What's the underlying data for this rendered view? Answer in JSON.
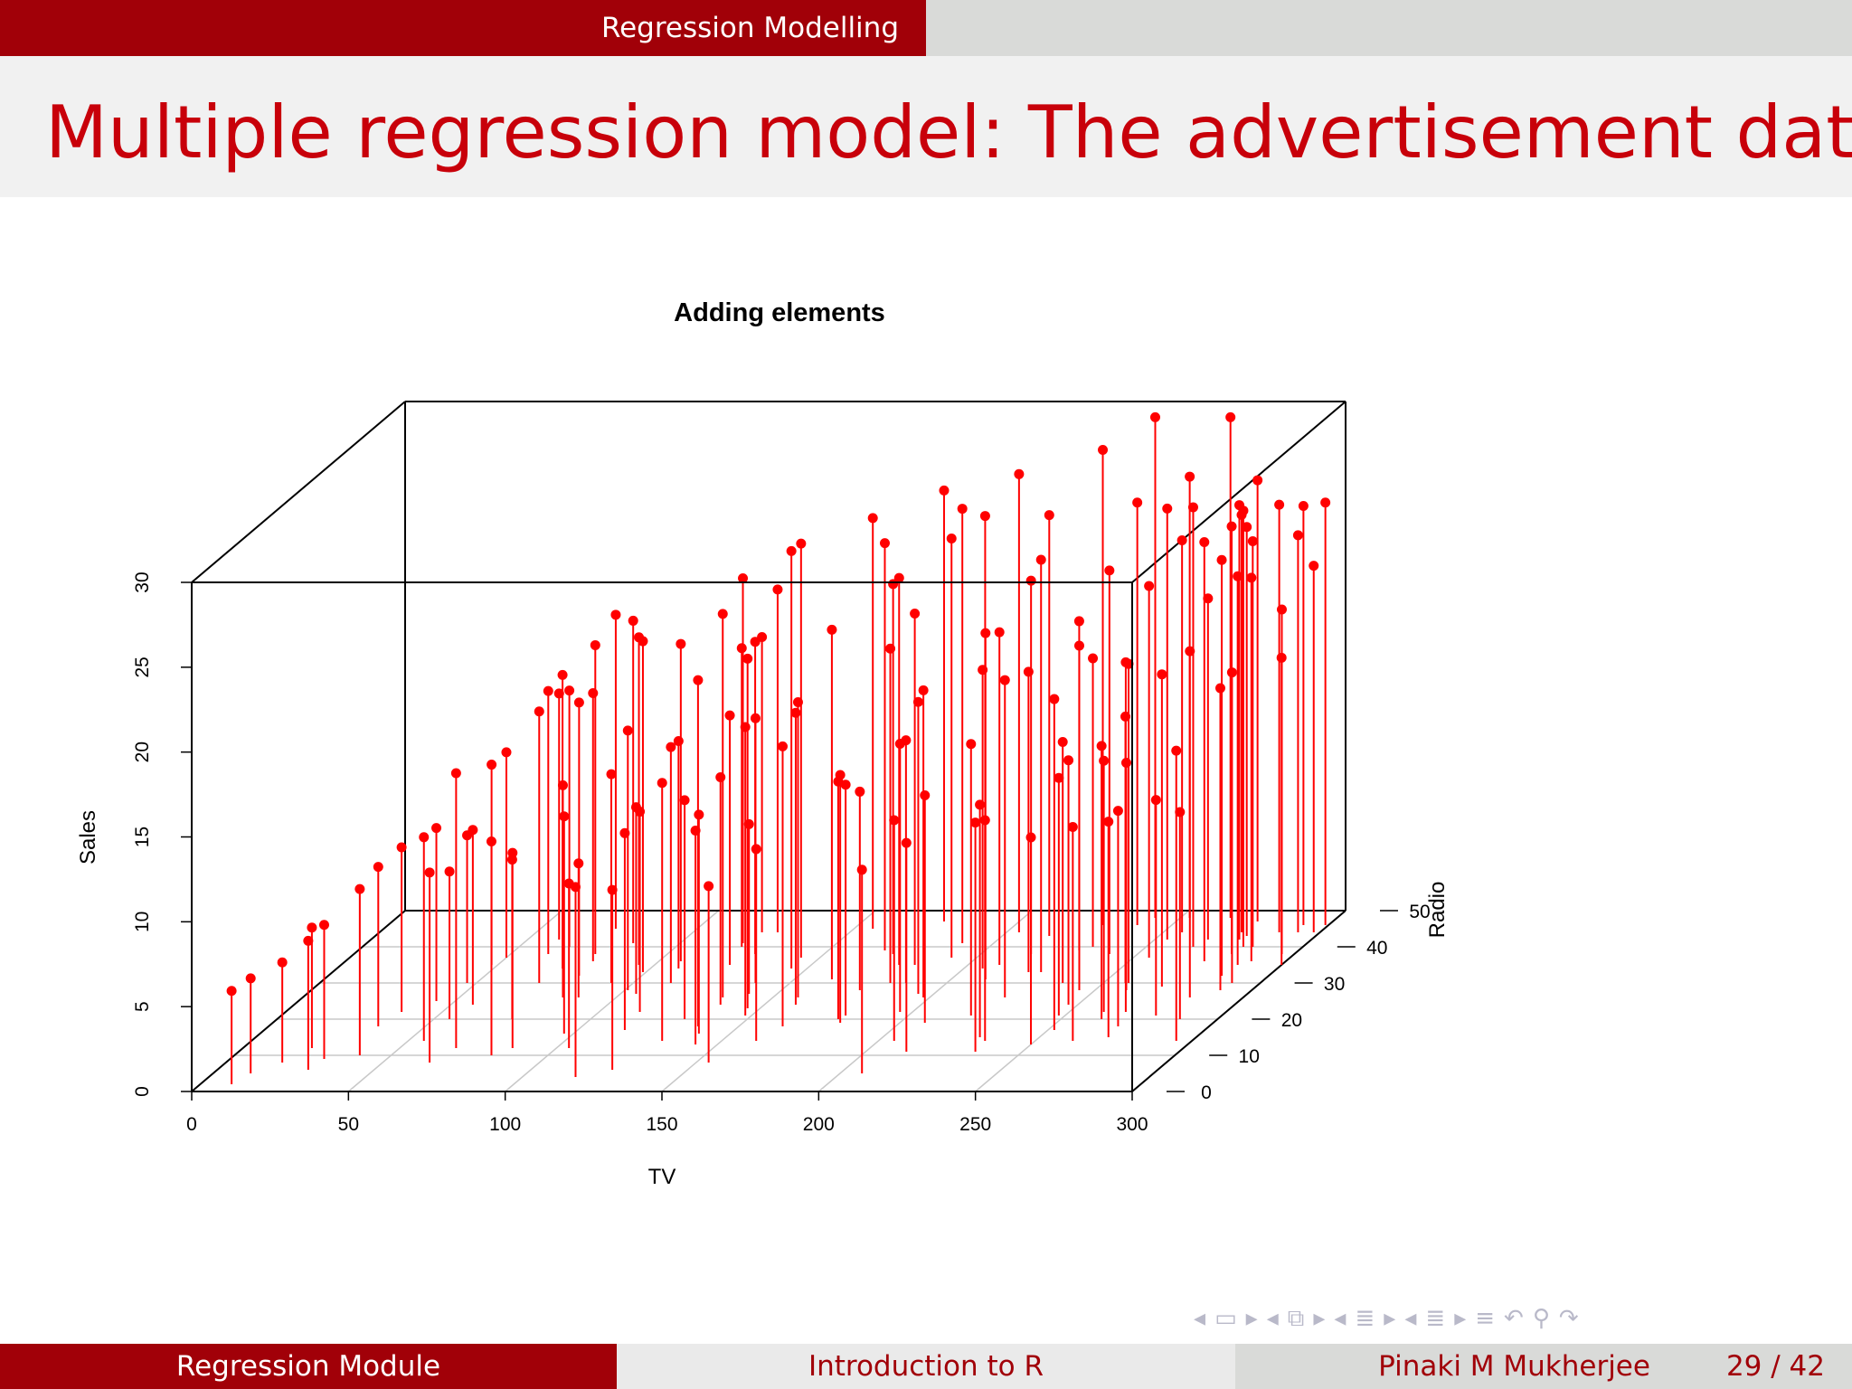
{
  "header": {
    "section": "Regression Modelling"
  },
  "slide": {
    "title": "Multiple regression model: The advertisement data"
  },
  "footer": {
    "left": "Regression Module",
    "center": "Introduction to R",
    "author": "Pinaki M Mukherjee",
    "page": "29 / 42"
  },
  "colors": {
    "brand": "#a10008",
    "title": "#c8000a",
    "points": "#ff0000"
  },
  "nav_icons": [
    "arrow-left-icon",
    "frame-icon",
    "arrow-right-icon",
    "arrow-left-icon",
    "subsection-icon",
    "arrow-right-icon",
    "arrow-left-icon",
    "section-icon",
    "arrow-right-icon",
    "arrow-left-icon",
    "list-icon",
    "arrow-right-icon",
    "align-icon",
    "undo-icon",
    "search-icon",
    "redo-icon"
  ],
  "chart_data": {
    "type": "scatter3d",
    "title": "Adding elements",
    "xlabel": "TV",
    "ylabel": "Radio",
    "zlabel": "Sales",
    "xlim": [
      0,
      300
    ],
    "ylim": [
      0,
      50
    ],
    "zlim": [
      0,
      30
    ],
    "x_ticks": [
      "0",
      "50",
      "100",
      "150",
      "200",
      "250",
      "300"
    ],
    "y_ticks": [
      "0",
      "10",
      "20",
      "30",
      "40",
      "50"
    ],
    "z_ticks": [
      "0",
      "5",
      "10",
      "15",
      "20",
      "25",
      "30"
    ],
    "drop_lines": true,
    "grid": "floor",
    "points": [
      [
        10,
        2,
        5.5
      ],
      [
        12,
        5,
        5.6
      ],
      [
        18,
        8,
        5.9
      ],
      [
        22,
        12,
        7.1
      ],
      [
        29,
        6,
        7.6
      ],
      [
        30,
        9,
        7.9
      ],
      [
        35,
        18,
        9.4
      ],
      [
        37,
        22,
        9.7
      ],
      [
        40,
        10,
        9.8
      ],
      [
        44,
        25,
        10.2
      ],
      [
        47,
        30,
        8.7
      ],
      [
        48,
        35,
        11.8
      ],
      [
        50,
        37,
        12.1
      ],
      [
        55,
        14,
        12.0
      ],
      [
        55,
        20,
        8.7
      ],
      [
        57,
        24,
        10.3
      ],
      [
        60,
        42,
        14.5
      ],
      [
        62,
        38,
        15.5
      ],
      [
        65,
        8,
        11.2
      ],
      [
        66,
        40,
        15.1
      ],
      [
        68,
        12,
        16.2
      ],
      [
        70,
        30,
        16.0
      ],
      [
        72,
        34,
        17.3
      ],
      [
        74,
        45,
        18.5
      ],
      [
        75,
        20,
        9.4
      ],
      [
        77,
        38,
        18.2
      ],
      [
        79,
        36,
        15.8
      ],
      [
        80,
        32,
        16.1
      ],
      [
        82,
        10,
        12.6
      ],
      [
        83,
        26,
        12.5
      ],
      [
        85,
        41,
        19.0
      ],
      [
        86,
        12,
        11.5
      ],
      [
        88,
        26,
        7.9
      ],
      [
        93,
        30,
        12.3
      ],
      [
        95,
        35,
        19.3
      ],
      [
        97,
        16,
        12.8
      ],
      [
        99,
        33,
        19.5
      ],
      [
        101,
        28,
        15.3
      ],
      [
        104,
        12,
        9.7
      ],
      [
        105,
        27,
        11.0
      ],
      [
        107,
        36,
        18.7
      ],
      [
        109,
        34,
        13.4
      ],
      [
        112,
        30,
        13.9
      ],
      [
        113,
        22,
        11.8
      ],
      [
        115,
        17,
        11.6
      ],
      [
        117,
        4,
        11.2
      ],
      [
        120,
        41,
        21.5
      ],
      [
        121,
        40,
        17.6
      ],
      [
        122,
        44,
        17.4
      ],
      [
        124,
        35,
        14.7
      ],
      [
        126,
        6,
        10.6
      ],
      [
        127,
        44,
        20.2
      ],
      [
        128,
        38,
        18.4
      ],
      [
        130,
        20,
        12.9
      ],
      [
        131,
        14,
        15.2
      ],
      [
        134,
        26,
        22.6
      ],
      [
        136,
        24,
        13.4
      ],
      [
        137,
        18,
        20.4
      ],
      [
        139,
        30,
        15.6
      ],
      [
        140,
        16,
        12.9
      ],
      [
        141,
        27,
        10.0
      ],
      [
        143,
        13,
        12.6
      ],
      [
        144,
        37,
        24.4
      ],
      [
        145,
        34,
        24.6
      ],
      [
        146,
        23,
        20.6
      ],
      [
        148,
        21,
        17.0
      ],
      [
        154,
        8,
        10.4
      ],
      [
        156,
        45,
        24.2
      ],
      [
        158,
        26,
        17.4
      ],
      [
        160,
        24,
        17.2
      ],
      [
        161,
        14,
        11.3
      ],
      [
        162,
        31,
        20.6
      ],
      [
        164,
        18,
        16.5
      ],
      [
        168,
        39,
        24.0
      ],
      [
        172,
        38,
        21.8
      ],
      [
        175,
        28,
        11.7
      ],
      [
        176,
        47,
        25.4
      ],
      [
        178,
        35,
        22.8
      ],
      [
        179,
        20,
        14.0
      ],
      [
        180,
        21,
        13.6
      ],
      [
        181,
        19,
        14.6
      ],
      [
        182,
        30,
        19.7
      ],
      [
        183,
        35,
        20.7
      ],
      [
        187,
        30,
        14.3
      ],
      [
        190,
        41,
        25.6
      ],
      [
        192,
        37,
        24.7
      ],
      [
        195,
        27,
        17.2
      ],
      [
        196,
        22,
        15.8
      ],
      [
        198,
        26,
        18.1
      ],
      [
        200,
        39,
        25.6
      ],
      [
        204,
        44,
        27.0
      ],
      [
        205,
        14,
        13.0
      ],
      [
        206,
        34,
        17.6
      ],
      [
        207,
        5,
        12.0
      ],
      [
        208,
        19,
        13.4
      ],
      [
        210,
        35,
        19.6
      ],
      [
        211,
        31,
        20.4
      ],
      [
        213,
        11,
        12.3
      ],
      [
        215,
        43,
        24.8
      ],
      [
        216,
        38,
        22.0
      ],
      [
        220,
        21,
        16.0
      ],
      [
        222,
        33,
        17.7
      ],
      [
        224,
        26,
        18.7
      ],
      [
        226,
        33,
        24.3
      ],
      [
        228,
        46,
        28.0
      ],
      [
        230,
        39,
        19.4
      ],
      [
        231,
        15,
        13.7
      ],
      [
        233,
        40,
        17.0
      ],
      [
        234,
        14,
        13.0
      ],
      [
        235,
        11,
        13.5
      ],
      [
        237,
        30,
        14.2
      ],
      [
        239,
        46,
        24.9
      ],
      [
        241,
        38,
        22.6
      ],
      [
        242,
        48,
        29.5
      ],
      [
        245,
        28,
        20.3
      ],
      [
        247,
        24,
        14.4
      ],
      [
        248,
        21,
        14.0
      ],
      [
        250,
        13,
        12.2
      ],
      [
        252,
        17,
        19.5
      ],
      [
        253,
        48,
        26.0
      ],
      [
        254,
        42,
        25.4
      ],
      [
        255,
        37,
        21.9
      ],
      [
        256,
        44,
        23.1
      ],
      [
        257,
        30,
        15.7
      ],
      [
        258,
        30,
        18.8
      ],
      [
        260,
        28,
        13.4
      ],
      [
        261,
        22,
        14.8
      ],
      [
        262,
        14,
        12.6
      ],
      [
        263,
        20,
        16.1
      ],
      [
        265,
        40,
        25.9
      ],
      [
        266,
        48,
        29.5
      ],
      [
        267,
        42,
        20.1
      ],
      [
        268,
        22,
        20.6
      ],
      [
        270,
        29,
        18.4
      ],
      [
        271,
        18,
        12.7
      ],
      [
        272,
        15,
        12.7
      ],
      [
        274,
        36,
        24.7
      ],
      [
        275,
        44,
        24.6
      ],
      [
        276,
        47,
        26.0
      ],
      [
        277,
        42,
        25.6
      ],
      [
        278,
        43,
        24.1
      ],
      [
        279,
        21,
        12.7
      ],
      [
        280,
        38,
        25.2
      ],
      [
        281,
        40,
        25.7
      ],
      [
        283,
        26,
        20.4
      ],
      [
        284,
        40,
        23.9
      ],
      [
        285,
        32,
        24.5
      ],
      [
        286,
        35,
        22.9
      ],
      [
        287,
        44,
        25.2
      ],
      [
        288,
        20,
        12.2
      ],
      [
        289,
        36,
        22.6
      ],
      [
        290,
        28,
        17.8
      ],
      [
        291,
        30,
        18.3
      ],
      [
        292,
        46,
        24.7
      ],
      [
        293,
        44,
        23.4
      ],
      [
        295,
        14,
        17.1
      ],
      [
        296,
        38,
        20.3
      ],
      [
        298,
        44,
        21.6
      ],
      [
        299,
        46,
        24.9
      ],
      [
        300,
        35,
        18.1
      ]
    ]
  }
}
